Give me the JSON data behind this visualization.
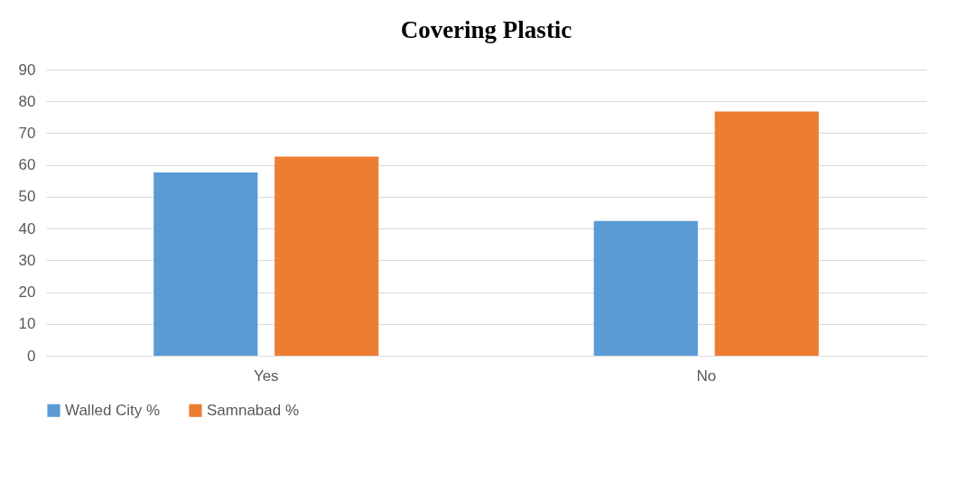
{
  "chart_data": {
    "type": "bar",
    "title": "Covering Plastic",
    "categories": [
      "Yes",
      "No"
    ],
    "series": [
      {
        "name": "Walled City %",
        "color": "#5b9bd5",
        "values": [
          57.6,
          42.4
        ]
      },
      {
        "name": "Samnabad %",
        "color": "#ed7d31",
        "values": [
          62.6,
          76.8
        ]
      }
    ],
    "ylim": [
      0,
      90
    ],
    "yticks": [
      0,
      10,
      20,
      30,
      40,
      50,
      60,
      70,
      80,
      90
    ],
    "grid": "y",
    "legend": "bottom"
  }
}
